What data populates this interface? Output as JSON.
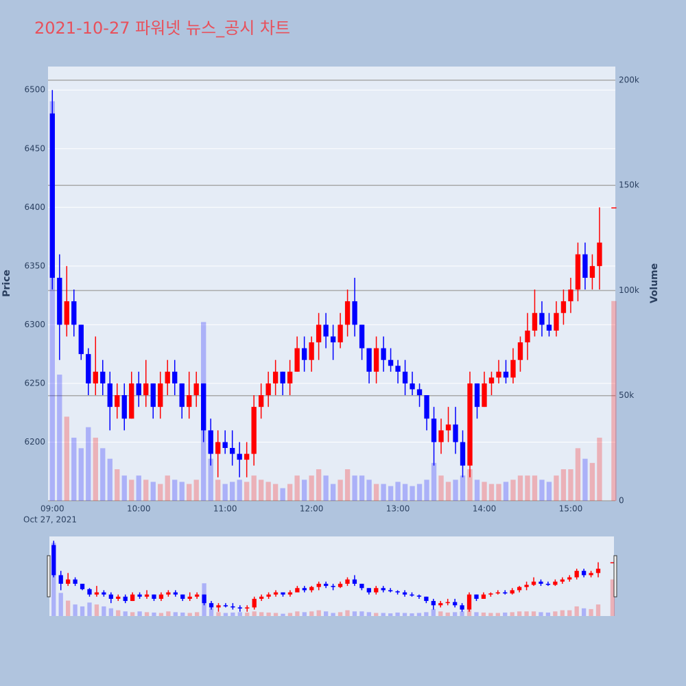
{
  "chart_data": {
    "type": "candlestick",
    "title": "2021-10-27 파워넷 뉴스_공시 차트",
    "ylabel": "Price",
    "y2label": "Volume",
    "increasing_color": "#ff0000",
    "decreasing_color": "#0000ff",
    "ylim": [
      6150,
      6520
    ],
    "yticks": [
      6200,
      6250,
      6300,
      6350,
      6400,
      6450,
      6500
    ],
    "y2lim": [
      0,
      206500
    ],
    "y2ticks": [
      0,
      {
        "value": 50000,
        "label": "50k"
      },
      {
        "value": 100000,
        "label": "100k"
      },
      {
        "value": 150000,
        "label": "150k"
      },
      {
        "value": 200000,
        "label": "200k"
      }
    ],
    "xlim": [
      "08:57",
      "15:31"
    ],
    "xticks": [
      "09:00",
      "10:00",
      "11:00",
      "12:00",
      "13:00",
      "14:00",
      "15:00"
    ],
    "x_sublabel": "Oct 27, 2021",
    "x": [
      "09:00",
      "09:05",
      "09:10",
      "09:15",
      "09:20",
      "09:25",
      "09:30",
      "09:35",
      "09:40",
      "09:45",
      "09:50",
      "09:55",
      "10:00",
      "10:05",
      "10:10",
      "10:15",
      "10:20",
      "10:25",
      "10:30",
      "10:35",
      "10:40",
      "10:45",
      "10:50",
      "10:55",
      "11:00",
      "11:05",
      "11:10",
      "11:15",
      "11:20",
      "11:25",
      "11:30",
      "11:35",
      "11:40",
      "11:45",
      "11:50",
      "11:55",
      "12:00",
      "12:05",
      "12:10",
      "12:15",
      "12:20",
      "12:25",
      "12:30",
      "12:35",
      "12:40",
      "12:45",
      "12:50",
      "12:55",
      "13:00",
      "13:05",
      "13:10",
      "13:15",
      "13:20",
      "13:25",
      "13:30",
      "13:35",
      "13:40",
      "13:45",
      "13:50",
      "13:55",
      "14:00",
      "14:05",
      "14:10",
      "14:15",
      "14:20",
      "14:25",
      "14:30",
      "14:35",
      "14:40",
      "14:45",
      "14:50",
      "14:55",
      "15:00",
      "15:05",
      "15:10",
      "15:15",
      "15:20",
      "15:30"
    ],
    "open": [
      6480,
      6340,
      6300,
      6320,
      6300,
      6275,
      6250,
      6260,
      6250,
      6230,
      6240,
      6220,
      6250,
      6240,
      6250,
      6230,
      6250,
      6260,
      6250,
      6230,
      6240,
      6250,
      6210,
      6190,
      6200,
      6195,
      6190,
      6185,
      6190,
      6230,
      6240,
      6250,
      6260,
      6250,
      6260,
      6280,
      6270,
      6285,
      6300,
      6290,
      6285,
      6300,
      6320,
      6300,
      6280,
      6260,
      6280,
      6270,
      6265,
      6260,
      6250,
      6245,
      6240,
      6220,
      6200,
      6210,
      6215,
      6200,
      6180,
      6250,
      6230,
      6250,
      6255,
      6260,
      6255,
      6270,
      6285,
      6295,
      6310,
      6300,
      6295,
      6310,
      6320,
      6330,
      6360,
      6340,
      6350,
      6400
    ],
    "high": [
      6500,
      6360,
      6350,
      6330,
      6300,
      6280,
      6290,
      6270,
      6260,
      6250,
      6250,
      6260,
      6260,
      6270,
      6250,
      6260,
      6270,
      6270,
      6250,
      6260,
      6260,
      6250,
      6220,
      6210,
      6210,
      6210,
      6200,
      6200,
      6240,
      6250,
      6260,
      6270,
      6260,
      6270,
      6290,
      6290,
      6290,
      6310,
      6310,
      6300,
      6310,
      6330,
      6340,
      6300,
      6280,
      6290,
      6290,
      6280,
      6270,
      6270,
      6260,
      6250,
      6240,
      6230,
      6220,
      6230,
      6230,
      6210,
      6260,
      6250,
      6260,
      6260,
      6270,
      6270,
      6280,
      6290,
      6310,
      6330,
      6320,
      6310,
      6320,
      6330,
      6340,
      6370,
      6370,
      6360,
      6400,
      6400
    ],
    "low": [
      6330,
      6270,
      6290,
      6290,
      6270,
      6240,
      6240,
      6240,
      6210,
      6220,
      6210,
      6220,
      6230,
      6230,
      6220,
      6220,
      6240,
      6240,
      6220,
      6220,
      6230,
      6200,
      6180,
      6170,
      6190,
      6180,
      6170,
      6170,
      6180,
      6220,
      6230,
      6240,
      6240,
      6240,
      6260,
      6260,
      6260,
      6270,
      6280,
      6270,
      6280,
      6290,
      6290,
      6270,
      6250,
      6250,
      6260,
      6260,
      6250,
      6240,
      6240,
      6230,
      6210,
      6180,
      6190,
      6200,
      6190,
      6170,
      6170,
      6220,
      6230,
      6240,
      6250,
      6250,
      6250,
      6260,
      6270,
      6290,
      6290,
      6290,
      6290,
      6300,
      6310,
      6320,
      6330,
      6330,
      6330,
      6400
    ],
    "close": [
      6340,
      6300,
      6320,
      6300,
      6275,
      6250,
      6260,
      6250,
      6230,
      6240,
      6220,
      6250,
      6240,
      6250,
      6230,
      6250,
      6260,
      6250,
      6230,
      6240,
      6250,
      6210,
      6190,
      6200,
      6195,
      6190,
      6185,
      6190,
      6230,
      6240,
      6250,
      6260,
      6250,
      6260,
      6280,
      6270,
      6285,
      6300,
      6290,
      6285,
      6300,
      6320,
      6300,
      6280,
      6260,
      6280,
      6270,
      6265,
      6260,
      6250,
      6245,
      6240,
      6220,
      6200,
      6210,
      6215,
      6200,
      6180,
      6250,
      6230,
      6250,
      6255,
      6260,
      6255,
      6270,
      6285,
      6295,
      6310,
      6300,
      6295,
      6310,
      6320,
      6330,
      6360,
      6340,
      6350,
      6370,
      6400
    ],
    "volume": [
      190000,
      60000,
      40000,
      30000,
      25000,
      35000,
      30000,
      25000,
      20000,
      15000,
      12000,
      10000,
      12000,
      10000,
      9000,
      8000,
      12000,
      10000,
      9000,
      8000,
      10000,
      85000,
      20000,
      10000,
      8000,
      9000,
      10000,
      9000,
      12000,
      10000,
      9000,
      8000,
      6000,
      8000,
      12000,
      10000,
      12000,
      15000,
      12000,
      8000,
      10000,
      15000,
      12000,
      12000,
      10000,
      8000,
      8000,
      7000,
      9000,
      8000,
      7000,
      8000,
      10000,
      18000,
      12000,
      9000,
      10000,
      12000,
      15000,
      10000,
      9000,
      8000,
      8000,
      9000,
      10000,
      12000,
      12000,
      12000,
      10000,
      9000,
      12000,
      15000,
      15000,
      25000,
      20000,
      18000,
      30000,
      95000
    ]
  }
}
